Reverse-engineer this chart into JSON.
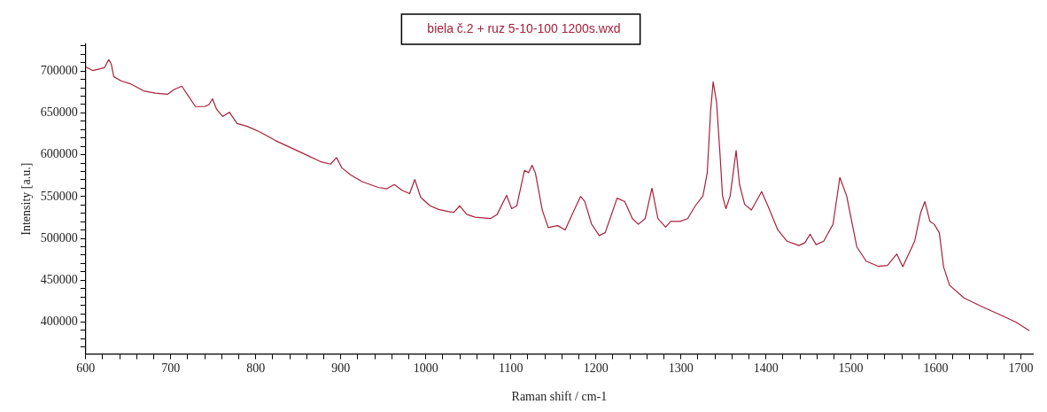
{
  "chart_data": {
    "type": "line",
    "xlabel": "Raman shift / cm-1",
    "ylabel": "Intensity [a.u.]",
    "legend": "top",
    "grid": false,
    "marker": "none",
    "line_style": "solid",
    "xlim": [
      600,
      1714
    ],
    "ylim": [
      362000,
      732000
    ],
    "xticks": [
      600,
      {
        "value": 620,
        "label": null
      },
      {
        "value": 640,
        "label": null
      },
      {
        "value": 660,
        "label": null
      },
      {
        "value": 680,
        "label": null
      },
      700,
      {
        "value": 720,
        "label": null
      },
      {
        "value": 740,
        "label": null
      },
      {
        "value": 760,
        "label": null
      },
      {
        "value": 780,
        "label": null
      },
      800,
      {
        "value": 820,
        "label": null
      },
      {
        "value": 840,
        "label": null
      },
      {
        "value": 860,
        "label": null
      },
      {
        "value": 880,
        "label": null
      },
      900,
      {
        "value": 920,
        "label": null
      },
      {
        "value": 940,
        "label": null
      },
      {
        "value": 960,
        "label": null
      },
      {
        "value": 980,
        "label": null
      },
      1000,
      {
        "value": 1020,
        "label": null
      },
      {
        "value": 1040,
        "label": null
      },
      {
        "value": 1060,
        "label": null
      },
      {
        "value": 1080,
        "label": null
      },
      1100,
      {
        "value": 1120,
        "label": null
      },
      {
        "value": 1140,
        "label": null
      },
      {
        "value": 1160,
        "label": null
      },
      {
        "value": 1180,
        "label": null
      },
      1200,
      {
        "value": 1220,
        "label": null
      },
      {
        "value": 1240,
        "label": null
      },
      {
        "value": 1260,
        "label": null
      },
      {
        "value": 1280,
        "label": null
      },
      1300,
      {
        "value": 1320,
        "label": null
      },
      {
        "value": 1340,
        "label": null
      },
      {
        "value": 1360,
        "label": null
      },
      {
        "value": 1380,
        "label": null
      },
      1400,
      {
        "value": 1420,
        "label": null
      },
      {
        "value": 1440,
        "label": null
      },
      {
        "value": 1460,
        "label": null
      },
      {
        "value": 1480,
        "label": null
      },
      1500,
      {
        "value": 1520,
        "label": null
      },
      {
        "value": 1540,
        "label": null
      },
      {
        "value": 1560,
        "label": null
      },
      {
        "value": 1580,
        "label": null
      },
      1600,
      {
        "value": 1620,
        "label": null
      },
      {
        "value": 1640,
        "label": null
      },
      {
        "value": 1660,
        "label": null
      },
      {
        "value": 1680,
        "label": null
      },
      1700
    ],
    "yticks": [
      {
        "value": 370000,
        "label": null
      },
      {
        "value": 380000,
        "label": null
      },
      {
        "value": 390000,
        "label": null
      },
      400000,
      {
        "value": 410000,
        "label": null
      },
      {
        "value": 420000,
        "label": null
      },
      {
        "value": 430000,
        "label": null
      },
      {
        "value": 440000,
        "label": null
      },
      450000,
      {
        "value": 460000,
        "label": null
      },
      {
        "value": 470000,
        "label": null
      },
      {
        "value": 480000,
        "label": null
      },
      {
        "value": 490000,
        "label": null
      },
      500000,
      {
        "value": 510000,
        "label": null
      },
      {
        "value": 520000,
        "label": null
      },
      {
        "value": 530000,
        "label": null
      },
      {
        "value": 540000,
        "label": null
      },
      550000,
      {
        "value": 560000,
        "label": null
      },
      {
        "value": 570000,
        "label": null
      },
      {
        "value": 580000,
        "label": null
      },
      {
        "value": 590000,
        "label": null
      },
      600000,
      {
        "value": 610000,
        "label": null
      },
      {
        "value": 620000,
        "label": null
      },
      {
        "value": 630000,
        "label": null
      },
      {
        "value": 640000,
        "label": null
      },
      650000,
      {
        "value": 660000,
        "label": null
      },
      {
        "value": 670000,
        "label": null
      },
      {
        "value": 680000,
        "label": null
      },
      {
        "value": 690000,
        "label": null
      },
      700000,
      {
        "value": 710000,
        "label": null
      },
      {
        "value": 720000,
        "label": null
      },
      {
        "value": 730000,
        "label": null
      }
    ],
    "series": [
      {
        "name": "biela č.2 + ruz 5-10-100 1200s.wxd",
        "color": "#a8203a",
        "x": [
          600,
          608,
          617,
          622,
          627,
          630,
          633,
          642,
          653,
          668,
          682,
          696,
          704,
          713,
          720,
          729,
          740,
          745,
          749,
          754,
          761,
          769,
          778,
          790,
          805,
          823,
          841,
          859,
          877,
          888,
          895,
          901,
          911,
          925,
          944,
          954,
          963,
          972,
          981,
          987,
          994,
          1005,
          1015,
          1026,
          1033,
          1040,
          1048,
          1058,
          1076,
          1084,
          1095,
          1101,
          1107,
          1116,
          1121,
          1125,
          1129,
          1137,
          1144,
          1155,
          1164,
          1173,
          1182,
          1187,
          1195,
          1204,
          1211,
          1225,
          1234,
          1243,
          1250,
          1258,
          1266,
          1273,
          1282,
          1288,
          1299,
          1308,
          1317,
          1326,
          1331,
          1335,
          1338,
          1342,
          1346,
          1349,
          1353,
          1358,
          1365,
          1369,
          1375,
          1383,
          1395,
          1403,
          1414,
          1425,
          1439,
          1446,
          1452,
          1459,
          1468,
          1479,
          1487,
          1495,
          1507,
          1518,
          1532,
          1543,
          1554,
          1561,
          1575,
          1582,
          1587,
          1593,
          1598,
          1604,
          1609,
          1616,
          1633,
          1654,
          1676,
          1694,
          1710
        ],
        "values": [
          705000,
          700700,
          702700,
          704000,
          713600,
          708500,
          693200,
          688100,
          684700,
          676300,
          673600,
          672200,
          678000,
          682000,
          671200,
          657600,
          657600,
          660000,
          666800,
          654200,
          645800,
          650800,
          637300,
          633900,
          627100,
          617000,
          608500,
          600000,
          591500,
          588800,
          596600,
          584700,
          576300,
          567800,
          561000,
          559300,
          564400,
          557600,
          553500,
          570500,
          549100,
          539000,
          534600,
          532200,
          531200,
          539000,
          528800,
          525400,
          523700,
          528800,
          551500,
          535600,
          539000,
          581300,
          578600,
          587500,
          577900,
          533900,
          512900,
          515300,
          510200,
          530500,
          550200,
          544100,
          517000,
          503400,
          506800,
          548100,
          544100,
          523700,
          516900,
          523700,
          560000,
          523700,
          513500,
          520300,
          520300,
          523700,
          539000,
          550800,
          578000,
          652500,
          687100,
          662700,
          601700,
          550800,
          535600,
          550800,
          605100,
          564400,
          540700,
          533900,
          556000,
          537300,
          510200,
          496600,
          491500,
          494900,
          505100,
          492500,
          496600,
          517000,
          572900,
          550800,
          489800,
          472800,
          466700,
          467700,
          481400,
          466100,
          496600,
          530500,
          544100,
          520300,
          516900,
          506800,
          466100,
          444100,
          428800,
          418600,
          408500,
          400000,
          389800
        ]
      }
    ]
  }
}
